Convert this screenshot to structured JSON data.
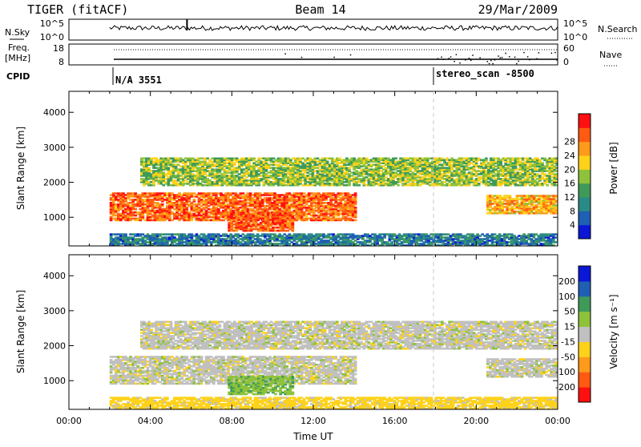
{
  "header": {
    "left": "TIGER (fitACF)",
    "center": "Beam 14",
    "right": "29/Mar/2009"
  },
  "noise_panel": {
    "left_label": "N.Sky",
    "right_label": "N.Search",
    "y_top": "10^5",
    "y_bottom": "10^0"
  },
  "freq_panel": {
    "left_label_1": "Freq.",
    "left_label_2": "[MHz]",
    "right_label": "Nave",
    "left_ticks": [
      "18",
      "8"
    ],
    "right_ticks": [
      "60",
      "0"
    ]
  },
  "cpid": {
    "label": "CPID",
    "segments": [
      {
        "text": "N/A 3551",
        "start_hour": 2.0
      },
      {
        "text": "stereo_scan -8500",
        "start_hour": 18.0
      }
    ]
  },
  "chart_data": [
    {
      "type": "heatmap",
      "title": "",
      "xlabel": "",
      "ylabel": "Slant Range [km]",
      "x_range_hours": [
        0,
        24
      ],
      "ylim": [
        180,
        4600
      ],
      "y_ticks": [
        1000,
        2000,
        3000,
        4000
      ],
      "colorbar": {
        "label": "Power [dB]",
        "ticks": [
          4,
          8,
          12,
          16,
          20,
          24,
          28
        ],
        "range": [
          0,
          32
        ],
        "colors": [
          "#0b17d6",
          "#1f5fb4",
          "#2a8a86",
          "#3f9a5a",
          "#8ec23a",
          "#ffd21a",
          "#ff9a1a",
          "#ff5a12",
          "#ff1010"
        ]
      },
      "features": [
        {
          "name": "main band",
          "hours": [
            2.0,
            14.0
          ],
          "range_km": [
            900,
            1700
          ],
          "value": 26
        },
        {
          "name": "upper band",
          "hours": [
            3.5,
            24.0
          ],
          "range_km": [
            1900,
            2700
          ],
          "value": 16
        },
        {
          "name": "morning blob",
          "hours": [
            7.8,
            11.0
          ],
          "range_km": [
            600,
            1100
          ],
          "value": 27
        },
        {
          "name": "evening band",
          "hours": [
            20.5,
            24.0
          ],
          "range_km": [
            1100,
            1600
          ],
          "value": 22
        },
        {
          "name": "near range",
          "hours": [
            2.0,
            24.0
          ],
          "range_km": [
            180,
            500
          ],
          "value": 8
        }
      ]
    },
    {
      "type": "heatmap",
      "title": "",
      "xlabel": "Time UT",
      "ylabel": "Slant Range [km]",
      "x_range_hours": [
        0,
        24
      ],
      "x_tick_labels": [
        "00:00",
        "04:00",
        "08:00",
        "12:00",
        "16:00",
        "20:00",
        "00:00"
      ],
      "ylim": [
        180,
        4600
      ],
      "y_ticks": [
        1000,
        2000,
        3000,
        4000
      ],
      "colorbar": {
        "label": "Velocity [m s⁻¹]",
        "ticks": [
          -200,
          -100,
          -50,
          -15,
          15,
          50,
          100,
          200
        ],
        "colors": [
          "#ff1010",
          "#ff5a12",
          "#ff9a1a",
          "#ffd21a",
          "#c0c0c0",
          "#8ec23a",
          "#3f9a5a",
          "#1f5fb4",
          "#0b17d6"
        ]
      },
      "features": [
        {
          "name": "main band",
          "hours": [
            2.0,
            14.0
          ],
          "range_km": [
            900,
            1700
          ],
          "value": 0
        },
        {
          "name": "upper band",
          "hours": [
            3.5,
            24.0
          ],
          "range_km": [
            1900,
            2700
          ],
          "value": 0
        },
        {
          "name": "morning blob",
          "hours": [
            7.8,
            11.0
          ],
          "range_km": [
            600,
            1100
          ],
          "value": 40
        },
        {
          "name": "evening band",
          "hours": [
            20.5,
            24.0
          ],
          "range_km": [
            1100,
            1600
          ],
          "value": 0
        },
        {
          "name": "near range",
          "hours": [
            2.0,
            24.0
          ],
          "range_km": [
            180,
            500
          ],
          "value": -30
        }
      ]
    }
  ]
}
